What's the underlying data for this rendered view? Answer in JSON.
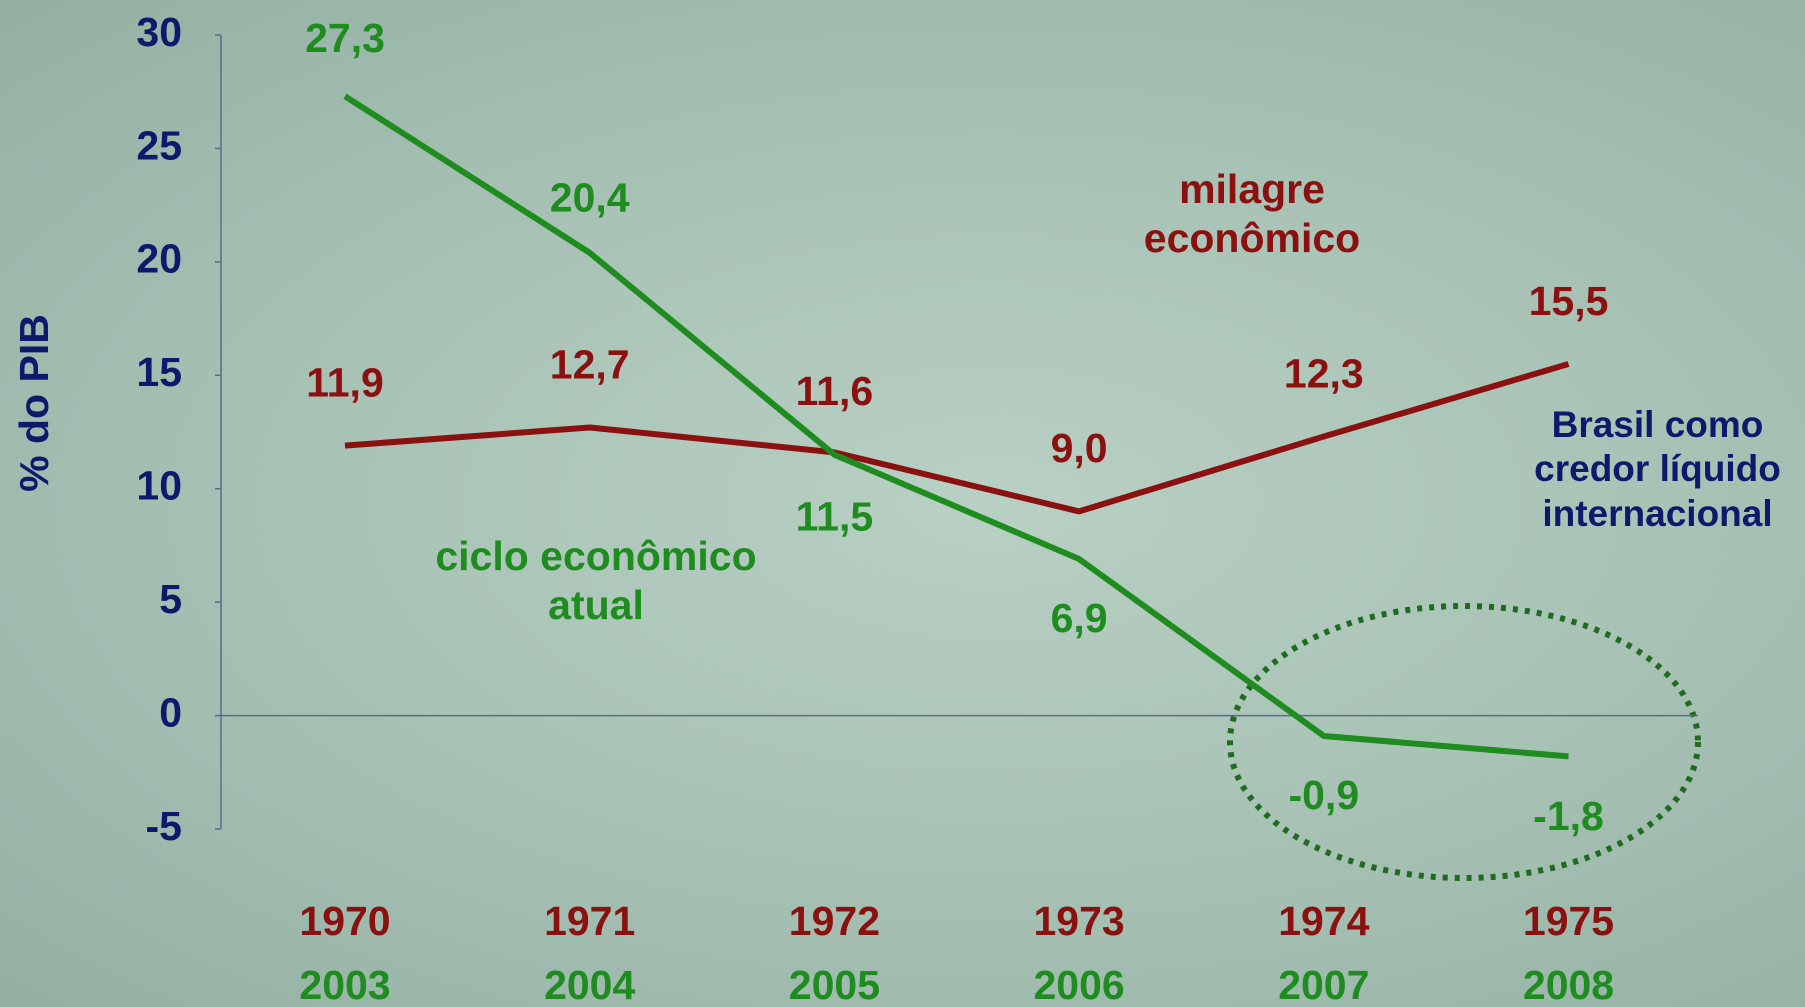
{
  "chart_data": {
    "type": "line",
    "ylabel": "% do PIB",
    "categories": [
      "1970",
      "1971",
      "1972",
      "1973",
      "1974",
      "1975"
    ],
    "categories_2": [
      "2003",
      "2004",
      "2005",
      "2006",
      "2007",
      "2008"
    ],
    "series": [
      {
        "name": "milagre econômico",
        "color": "#8b1010",
        "values": [
          11.9,
          12.7,
          11.6,
          9.0,
          12.3,
          15.5
        ],
        "value_labels": [
          "11,9",
          "12,7",
          "11,6",
          "9,0",
          "12,3",
          "15,5"
        ]
      },
      {
        "name": "ciclo econômico atual",
        "color": "#1e8c1e",
        "values": [
          27.3,
          20.4,
          11.5,
          6.9,
          -0.9,
          -1.8
        ],
        "value_labels": [
          "27,3",
          "20,4",
          "11,5",
          "6,9",
          "-0,9",
          "-1,8"
        ]
      }
    ],
    "annotation": "Brasil como credor líquido internacional",
    "ylim": [
      -5,
      30
    ],
    "yticks": [
      -5,
      0,
      5,
      10,
      15,
      20,
      25,
      30
    ]
  }
}
